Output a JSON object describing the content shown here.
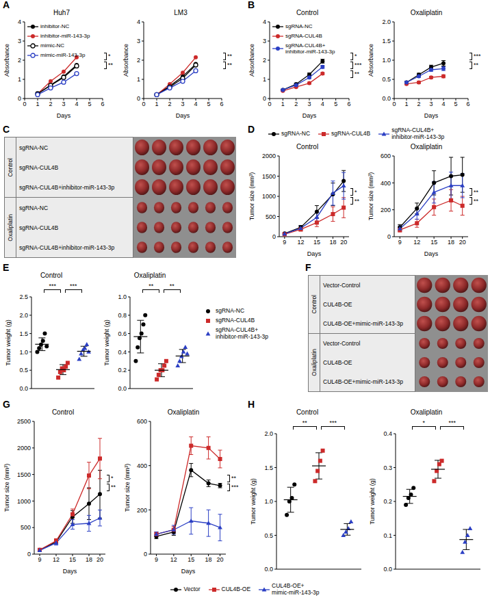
{
  "chart_data": [
    {
      "panel": "A",
      "type": "line",
      "title": "Huh7",
      "x_label": "Days",
      "y_label": "Absorbance",
      "x": [
        1,
        2,
        3,
        4
      ],
      "xlim": [
        0,
        6
      ],
      "xticks": [
        0,
        1,
        2,
        3,
        4,
        5,
        6
      ],
      "ylim": [
        0,
        4
      ],
      "yticks": [
        0,
        1,
        2,
        3,
        4
      ],
      "legend": "upper left",
      "annotations": [
        "*",
        "**"
      ],
      "series": [
        {
          "name": "inhibitor-NC",
          "color": "#000000",
          "marker": "circle",
          "values": [
            0.25,
            0.7,
            1.15,
            1.75
          ]
        },
        {
          "name": "inhibitor-miR-143-3p",
          "color": "#cc2a2a",
          "marker": "circle",
          "values": [
            0.25,
            0.9,
            1.4,
            2.15
          ]
        },
        {
          "name": "mimic-NC",
          "color": "#000000",
          "marker": "open_circle",
          "values": [
            0.25,
            0.68,
            1.1,
            1.7
          ]
        },
        {
          "name": "mimic-miR-143-3p",
          "color": "#2b3fc4",
          "marker": "open_circle",
          "values": [
            0.2,
            0.55,
            0.85,
            1.3
          ]
        }
      ]
    },
    {
      "panel": "A",
      "type": "line",
      "title": "LM3",
      "x_label": "Days",
      "y_label": "Absorbance",
      "x": [
        1,
        2,
        3,
        4
      ],
      "xlim": [
        0,
        6
      ],
      "xticks": [
        0,
        1,
        2,
        3,
        4,
        5,
        6
      ],
      "ylim": [
        0,
        4
      ],
      "yticks": [
        0,
        1,
        2,
        3,
        4
      ],
      "annotations": [
        "**",
        "**"
      ],
      "series": [
        {
          "name": "inhibitor-NC",
          "color": "#000000",
          "marker": "circle",
          "values": [
            0.2,
            0.65,
            1.15,
            1.8
          ]
        },
        {
          "name": "inhibitor-miR-143-3p",
          "color": "#cc2a2a",
          "marker": "circle",
          "values": [
            0.2,
            0.75,
            1.35,
            2.15
          ]
        },
        {
          "name": "mimic-NC",
          "color": "#000000",
          "marker": "open_circle",
          "values": [
            0.2,
            0.6,
            1.05,
            1.75
          ]
        },
        {
          "name": "mimic-miR-143-3p",
          "color": "#2b3fc4",
          "marker": "open_circle",
          "values": [
            0.2,
            0.55,
            0.9,
            1.45
          ]
        }
      ]
    },
    {
      "panel": "B",
      "type": "line",
      "title": "Control",
      "x_label": "Days",
      "y_label": "Absorbance",
      "x": [
        1,
        2,
        3,
        4
      ],
      "xlim": [
        0,
        6
      ],
      "xticks": [
        0,
        1,
        2,
        3,
        4,
        5,
        6
      ],
      "ylim": [
        0,
        4
      ],
      "yticks": [
        0,
        1,
        2,
        3,
        4
      ],
      "legend": "upper left",
      "annotations": [
        "*",
        "***",
        "**"
      ],
      "series": [
        {
          "name": "sgRNA-NC",
          "color": "#000000",
          "marker": "circle",
          "values": [
            0.45,
            0.75,
            1.25,
            1.95
          ],
          "errors": [
            0.04,
            0.05,
            0.08,
            0.1
          ]
        },
        {
          "name": "sgRNA-CUL4B",
          "color": "#cc2a2a",
          "marker": "circle",
          "values": [
            0.4,
            0.6,
            0.8,
            1.3
          ],
          "errors": [
            0.03,
            0.04,
            0.05,
            0.06
          ]
        },
        {
          "name": "sgRNA-CUL4B+inhibitor-miR-143-3p",
          "color": "#2b3fc4",
          "marker": "circle",
          "values": [
            0.45,
            0.7,
            1.1,
            1.65
          ],
          "errors": [
            0.03,
            0.04,
            0.06,
            0.08
          ]
        }
      ]
    },
    {
      "panel": "B",
      "type": "line",
      "title": "Oxaliplatin",
      "x_label": "Days",
      "y_label": "Absorbance",
      "x": [
        1,
        2,
        3,
        4
      ],
      "xlim": [
        0,
        6
      ],
      "xticks": [
        0,
        1,
        2,
        3,
        4,
        5,
        6
      ],
      "ylim": [
        0,
        2
      ],
      "yticks": [
        {
          "value": 0,
          "label": "0.0"
        },
        {
          "value": 0.5,
          "label": "0.5"
        },
        {
          "value": 1,
          "label": "1.0"
        },
        {
          "value": 1.5,
          "label": "1.5"
        },
        {
          "value": 2,
          "label": "2.0"
        }
      ],
      "annotations": [
        "***",
        "**"
      ],
      "series": [
        {
          "name": "sgRNA-NC",
          "color": "#000000",
          "marker": "circle",
          "values": [
            0.42,
            0.62,
            0.82,
            0.92
          ],
          "errors": [
            0.03,
            0.04,
            0.05,
            0.07
          ]
        },
        {
          "name": "sgRNA-CUL4B",
          "color": "#cc2a2a",
          "marker": "circle",
          "values": [
            0.38,
            0.42,
            0.55,
            0.58
          ],
          "errors": [
            0.02,
            0.03,
            0.03,
            0.04
          ]
        },
        {
          "name": "sgRNA-CUL4B+inhibitor-miR-143-3p",
          "color": "#2b3fc4",
          "marker": "circle",
          "values": [
            0.42,
            0.58,
            0.75,
            0.78
          ],
          "errors": [
            0.02,
            0.03,
            0.04,
            0.05
          ]
        }
      ]
    },
    {
      "panel": "D",
      "type": "line",
      "title": "Control",
      "x_label": "Days",
      "y_label": "Tumor size (mm³)",
      "x": [
        9,
        12,
        15,
        18,
        20
      ],
      "xlim": [
        8,
        21
      ],
      "xticks": [
        9,
        12,
        15,
        18,
        20
      ],
      "ylim": [
        0,
        2000
      ],
      "yticks": [
        0,
        500,
        1000,
        1500,
        2000
      ],
      "legend": "top",
      "annotations": [
        "*",
        "**"
      ],
      "series": [
        {
          "name": "sgRNA-NC",
          "color": "#000000",
          "marker": "circle",
          "values": [
            80,
            230,
            620,
            1050,
            1380
          ],
          "errors": [
            20,
            50,
            150,
            280,
            260
          ]
        },
        {
          "name": "sgRNA-CUL4B",
          "color": "#cc2a2a",
          "marker": "square",
          "values": [
            60,
            180,
            350,
            560,
            720
          ],
          "errors": [
            15,
            40,
            100,
            180,
            250
          ]
        },
        {
          "name": "sgRNA-CUL4B+inhibitor-miR-143-3p",
          "color": "#2b3fc4",
          "marker": "triangle",
          "values": [
            70,
            210,
            480,
            1080,
            1260
          ],
          "errors": [
            20,
            50,
            120,
            300,
            330
          ]
        }
      ]
    },
    {
      "panel": "D",
      "type": "line",
      "title": "Oxaliplatin",
      "x_label": "Days",
      "y_label": "Tumor size (mm³)",
      "x": [
        9,
        12,
        15,
        18,
        20
      ],
      "xlim": [
        8,
        21
      ],
      "xticks": [
        9,
        12,
        15,
        18,
        20
      ],
      "ylim": [
        0,
        600
      ],
      "yticks": [
        0,
        200,
        400,
        600
      ],
      "annotations": [
        "**",
        "**"
      ],
      "series": [
        {
          "name": "sgRNA-NC",
          "color": "#000000",
          "marker": "circle",
          "values": [
            70,
            210,
            400,
            450,
            460
          ],
          "errors": [
            20,
            40,
            90,
            140,
            130
          ]
        },
        {
          "name": "sgRNA-CUL4B",
          "color": "#cc2a2a",
          "marker": "square",
          "values": [
            50,
            100,
            220,
            270,
            230
          ],
          "errors": [
            15,
            30,
            60,
            80,
            70
          ]
        },
        {
          "name": "sgRNA-CUL4B+inhibitor-miR-143-3p",
          "color": "#2b3fc4",
          "marker": "triangle",
          "values": [
            60,
            170,
            330,
            380,
            380
          ],
          "errors": [
            20,
            40,
            80,
            100,
            90
          ]
        }
      ]
    },
    {
      "panel": "E",
      "type": "dot",
      "title": "Control",
      "y_label": "Tumor weight (g)",
      "ylim": [
        0,
        2.5
      ],
      "yticks": [
        {
          "value": 0,
          "label": "0.0"
        },
        {
          "value": 0.5,
          "label": "0.5"
        },
        {
          "value": 1,
          "label": "1.0"
        },
        {
          "value": 1.5,
          "label": "1.5"
        },
        {
          "value": 2,
          "label": "2.0"
        },
        {
          "value": 2.5,
          "label": "2.5"
        }
      ],
      "tick_labels": "y",
      "annotations": [
        "***",
        "***"
      ],
      "series": [
        {
          "name": "sgRNA-NC",
          "color": "#000000",
          "marker": "circle",
          "values": [
            1.0,
            1.1,
            1.2,
            1.3,
            1.5,
            1.15
          ]
        },
        {
          "name": "sgRNA-CUL4B",
          "color": "#cc2a2a",
          "marker": "square",
          "values": [
            0.3,
            0.45,
            0.55,
            0.5,
            0.6,
            0.7
          ]
        },
        {
          "name": "sgRNA-CUL4B+inhibitor-miR-143-3p",
          "color": "#2b3fc4",
          "marker": "triangle",
          "values": [
            0.8,
            0.95,
            1.05,
            1.1,
            1.2,
            1.0
          ]
        }
      ]
    },
    {
      "panel": "E",
      "type": "dot",
      "title": "Oxaliplatin",
      "y_label": "Tumor weight (g)",
      "ylim": [
        0,
        1
      ],
      "yticks": [
        {
          "value": 0,
          "label": "0.0"
        },
        {
          "value": 0.2,
          "label": "0.2"
        },
        {
          "value": 0.4,
          "label": "0.4"
        },
        {
          "value": 0.6,
          "label": "0.6"
        },
        {
          "value": 0.8,
          "label": "0.8"
        },
        {
          "value": 1,
          "label": "1.0"
        }
      ],
      "tick_labels": "y",
      "legend": "right",
      "annotations": [
        "**",
        "**"
      ],
      "series": [
        {
          "name": "sgRNA-NC",
          "color": "#000000",
          "marker": "circle",
          "values": [
            0.3,
            0.45,
            0.55,
            0.6,
            0.7,
            0.8
          ]
        },
        {
          "name": "sgRNA-CUL4B",
          "color": "#cc2a2a",
          "marker": "square",
          "values": [
            0.1,
            0.15,
            0.2,
            0.2,
            0.25,
            0.3
          ]
        },
        {
          "name": "sgRNA-CUL4B+inhibitor-miR-143-3p",
          "color": "#2b3fc4",
          "marker": "triangle",
          "values": [
            0.25,
            0.3,
            0.35,
            0.4,
            0.45,
            0.38
          ]
        }
      ]
    },
    {
      "panel": "G",
      "type": "line",
      "title": "Control",
      "x_label": "Days",
      "y_label": "Tumor size (mm³)",
      "x": [
        9,
        12,
        15,
        18,
        20
      ],
      "xlim": [
        8,
        21
      ],
      "xticks": [
        9,
        12,
        15,
        18,
        20
      ],
      "ylim": [
        0,
        2500
      ],
      "yticks": [
        0,
        500,
        1000,
        1500,
        2000,
        2500
      ],
      "legend": "bottom",
      "annotations": [
        "*",
        "**"
      ],
      "series": [
        {
          "name": "Vector",
          "color": "#000000",
          "marker": "circle",
          "values": [
            80,
            230,
            700,
            950,
            1130
          ],
          "errors": [
            15,
            40,
            120,
            300,
            450
          ]
        },
        {
          "name": "CUL4B-OE",
          "color": "#cc2a2a",
          "marker": "square",
          "values": [
            80,
            250,
            750,
            1480,
            1800
          ],
          "errors": [
            15,
            40,
            100,
            250,
            380
          ]
        },
        {
          "name": "CUL4B-OE+mimic-miR-143-3p",
          "color": "#2b3fc4",
          "marker": "triangle",
          "values": [
            70,
            210,
            560,
            580,
            680
          ],
          "errors": [
            15,
            40,
            90,
            150,
            150
          ]
        }
      ]
    },
    {
      "panel": "G",
      "type": "line",
      "title": "Oxaliplatin",
      "x_label": "Days",
      "y_label": "Tumor size (mm³)",
      "x": [
        9,
        12,
        15,
        18,
        20
      ],
      "xlim": [
        8,
        21
      ],
      "xticks": [
        9,
        12,
        15,
        18,
        20
      ],
      "ylim": [
        0,
        600
      ],
      "yticks": [
        0,
        200,
        400,
        600
      ],
      "annotations": [
        "**",
        "***"
      ],
      "series": [
        {
          "name": "Vector",
          "color": "#000000",
          "marker": "circle",
          "values": [
            80,
            100,
            380,
            320,
            310
          ],
          "errors": [
            10,
            15,
            30,
            15,
            10
          ]
        },
        {
          "name": "CUL4B-OE",
          "color": "#cc2a2a",
          "marker": "square",
          "values": [
            90,
            110,
            490,
            480,
            430
          ],
          "errors": [
            10,
            15,
            40,
            50,
            40
          ]
        },
        {
          "name": "CUL4B-OE+mimic-miR-143-3p",
          "color": "#2b3fc4",
          "marker": "triangle",
          "values": [
            90,
            110,
            150,
            140,
            120
          ],
          "errors": [
            10,
            20,
            60,
            60,
            60
          ]
        }
      ]
    },
    {
      "panel": "H",
      "type": "dot",
      "title": "Control",
      "y_label": "Tumor weight (g)",
      "ylim": [
        0,
        2
      ],
      "yticks": [
        {
          "value": 0,
          "label": "0.0"
        },
        {
          "value": 0.5,
          "label": "0.5"
        },
        {
          "value": 1,
          "label": "1.0"
        },
        {
          "value": 1.5,
          "label": "1.5"
        },
        {
          "value": 2,
          "label": "2.0"
        }
      ],
      "tick_labels": "y",
      "annotations": [
        "**",
        "***"
      ],
      "series": [
        {
          "name": "Vector",
          "color": "#000000",
          "marker": "circle",
          "values": [
            0.8,
            1.0,
            1.05,
            1.25
          ]
        },
        {
          "name": "CUL4B-OE",
          "color": "#cc2a2a",
          "marker": "square",
          "values": [
            1.3,
            1.45,
            1.6,
            1.75
          ]
        },
        {
          "name": "CUL4B-OE+mimic-miR-143-3p",
          "color": "#2b3fc4",
          "marker": "triangle",
          "values": [
            0.5,
            0.55,
            0.6,
            0.7
          ]
        }
      ]
    },
    {
      "panel": "H",
      "type": "dot",
      "title": "Oxaliplatin",
      "y_label": "Tumor weight (g)",
      "ylim": [
        0,
        0.4
      ],
      "yticks": [
        {
          "value": 0,
          "label": "0.0"
        },
        {
          "value": 0.1,
          "label": "0.1"
        },
        {
          "value": 0.2,
          "label": "0.2"
        },
        {
          "value": 0.3,
          "label": "0.3"
        },
        {
          "value": 0.4,
          "label": "0.4"
        }
      ],
      "tick_labels": "y",
      "annotations": [
        "*",
        "***"
      ],
      "series": [
        {
          "name": "Vector",
          "color": "#000000",
          "marker": "circle",
          "values": [
            0.19,
            0.21,
            0.22,
            0.24
          ]
        },
        {
          "name": "CUL4B-OE",
          "color": "#cc2a2a",
          "marker": "square",
          "values": [
            0.26,
            0.29,
            0.31,
            0.32
          ]
        },
        {
          "name": "CUL4B-OE+mimic-miR-143-3p",
          "color": "#2b3fc4",
          "marker": "triangle",
          "values": [
            0.05,
            0.08,
            0.1,
            0.12
          ]
        }
      ]
    }
  ],
  "photos": [
    {
      "panel": "C",
      "tumors_per_row": 6,
      "groups": [
        {
          "name": "Control",
          "rows": [
            "sgRNA-NC",
            "sgRNA-CUL4B",
            "sgRNA-CUL4B+inhibitor-miR-143-3p"
          ]
        },
        {
          "name": "Oxaliplatin",
          "rows": [
            "sgRNA-NC",
            "sgRNA-CUL4B",
            "sgRNA-CUL4B+inhibitor-miR-143-3p"
          ]
        }
      ]
    },
    {
      "panel": "F",
      "tumors_per_row": 4,
      "groups": [
        {
          "name": "Control",
          "rows": [
            "Vector-Control",
            "CUL4B-OE",
            "CUL4B-OE+mimic-miR-143-3p"
          ]
        },
        {
          "name": "Oxaliplatin",
          "rows": [
            "Vector-Control",
            "CUL4B-OE",
            "CUL4B-OE+mimic-miR-143-3p"
          ]
        }
      ]
    }
  ]
}
